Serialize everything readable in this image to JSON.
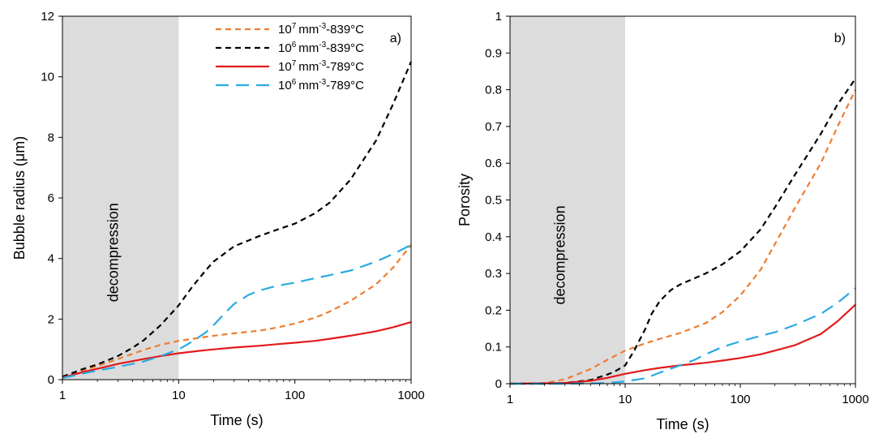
{
  "chart_data": [
    {
      "type": "line",
      "panel_label": "a)",
      "xlabel": "Time (s)",
      "ylabel": "Bubble radius (μm)",
      "x_scale": "log",
      "xlim": [
        1,
        1000
      ],
      "ylim": [
        0,
        12
      ],
      "x_ticks": [
        "1",
        "10",
        "100",
        "1000"
      ],
      "y_ticks": [
        "0",
        "2",
        "4",
        "6",
        "8",
        "10",
        "12"
      ],
      "grid": false,
      "shaded_region": {
        "x_range": [
          1,
          10
        ],
        "label": "decompression",
        "color": "#dcdcdc"
      },
      "legend": {
        "position": "top-right"
      },
      "series": [
        {
          "name_base": "10",
          "name_exp": "7",
          "name_unit": "mm",
          "name_unit_exp": "-3",
          "name_suffix": "-839°C",
          "color": "#ed7d31",
          "dash": "short-dash",
          "x": [
            1,
            1.5,
            2,
            3,
            5,
            7,
            10,
            15,
            20,
            30,
            50,
            70,
            100,
            150,
            200,
            300,
            500,
            700,
            1000
          ],
          "y": [
            0.08,
            0.3,
            0.45,
            0.68,
            0.98,
            1.15,
            1.28,
            1.38,
            1.45,
            1.53,
            1.62,
            1.72,
            1.85,
            2.05,
            2.25,
            2.6,
            3.15,
            3.7,
            4.45
          ]
        },
        {
          "name_base": "10",
          "name_exp": "6",
          "name_unit": "mm",
          "name_unit_exp": "-3",
          "name_suffix": "-839°C",
          "color": "#000000",
          "dash": "short-dash",
          "x": [
            1,
            1.5,
            2,
            3,
            4,
            5,
            7,
            10,
            13,
            17,
            20,
            30,
            50,
            70,
            100,
            150,
            200,
            300,
            500,
            700,
            1000
          ],
          "y": [
            0.1,
            0.35,
            0.5,
            0.78,
            1.05,
            1.3,
            1.8,
            2.45,
            3.05,
            3.6,
            3.9,
            4.4,
            4.75,
            4.95,
            5.15,
            5.5,
            5.85,
            6.6,
            7.9,
            9.1,
            10.5
          ]
        },
        {
          "name_base": "10",
          "name_exp": "7",
          "name_unit": "mm",
          "name_unit_exp": "-3",
          "name_suffix": "-789°C",
          "color": "#e31a1c",
          "dash": "solid",
          "x": [
            1,
            1.5,
            2,
            3,
            5,
            7,
            10,
            15,
            20,
            30,
            50,
            70,
            100,
            150,
            200,
            300,
            500,
            700,
            1000
          ],
          "y": [
            0.07,
            0.25,
            0.36,
            0.52,
            0.68,
            0.78,
            0.87,
            0.95,
            1.0,
            1.06,
            1.12,
            1.17,
            1.22,
            1.28,
            1.35,
            1.45,
            1.6,
            1.73,
            1.9
          ]
        },
        {
          "name_base": "10",
          "name_exp": "6",
          "name_unit": "mm",
          "name_unit_exp": "-3",
          "name_suffix": "-789°C",
          "color": "#29abe2",
          "dash": "long-dash",
          "x": [
            1,
            1.5,
            2,
            3,
            5,
            7,
            10,
            13,
            17,
            20,
            25,
            30,
            40,
            50,
            70,
            100,
            150,
            200,
            300,
            500,
            700,
            1000
          ],
          "y": [
            0.05,
            0.2,
            0.3,
            0.42,
            0.6,
            0.78,
            1.0,
            1.25,
            1.55,
            1.8,
            2.2,
            2.5,
            2.8,
            2.95,
            3.1,
            3.2,
            3.35,
            3.45,
            3.6,
            3.9,
            4.15,
            4.45
          ]
        }
      ]
    },
    {
      "type": "line",
      "panel_label": "b)",
      "xlabel": "Time (s)",
      "ylabel": "Porosity",
      "x_scale": "log",
      "xlim": [
        1,
        1000
      ],
      "ylim": [
        0,
        1
      ],
      "x_ticks": [
        "1",
        "10",
        "100",
        "1000"
      ],
      "y_ticks": [
        "0",
        "0.1",
        "0.2",
        "0.3",
        "0.4",
        "0.5",
        "0.6",
        "0.7",
        "0.8",
        "0.9",
        "1"
      ],
      "grid": false,
      "shaded_region": {
        "x_range": [
          1,
          10
        ],
        "label": "decompression",
        "color": "#dcdcdc"
      },
      "series": [
        {
          "color": "#ed7d31",
          "dash": "short-dash",
          "x": [
            1,
            2,
            3,
            5,
            7,
            10,
            15,
            20,
            30,
            50,
            70,
            100,
            150,
            200,
            300,
            500,
            700,
            1000
          ],
          "y": [
            0,
            0.002,
            0.012,
            0.04,
            0.065,
            0.09,
            0.11,
            0.122,
            0.138,
            0.165,
            0.195,
            0.24,
            0.31,
            0.38,
            0.48,
            0.6,
            0.7,
            0.8
          ]
        },
        {
          "color": "#000000",
          "dash": "short-dash",
          "x": [
            1,
            2,
            3,
            5,
            7,
            8,
            10,
            12,
            15,
            17,
            20,
            25,
            30,
            50,
            70,
            100,
            150,
            200,
            300,
            500,
            700,
            1000
          ],
          "y": [
            0,
            0.0,
            0.002,
            0.01,
            0.025,
            0.032,
            0.05,
            0.09,
            0.15,
            0.19,
            0.225,
            0.255,
            0.27,
            0.3,
            0.325,
            0.36,
            0.42,
            0.48,
            0.57,
            0.68,
            0.76,
            0.83
          ]
        },
        {
          "color": "#e31a1c",
          "dash": "solid",
          "x": [
            1,
            3,
            5,
            7,
            10,
            15,
            20,
            30,
            50,
            70,
            100,
            150,
            200,
            300,
            500,
            700,
            1000
          ],
          "y": [
            0,
            0.002,
            0.008,
            0.016,
            0.027,
            0.037,
            0.043,
            0.05,
            0.057,
            0.063,
            0.07,
            0.08,
            0.09,
            0.105,
            0.135,
            0.17,
            0.215
          ]
        },
        {
          "color": "#29abe2",
          "dash": "long-dash",
          "x": [
            1,
            3,
            5,
            7,
            10,
            15,
            20,
            30,
            40,
            50,
            70,
            100,
            150,
            200,
            300,
            500,
            700,
            1000
          ],
          "y": [
            0,
            0,
            0.001,
            0.002,
            0.006,
            0.015,
            0.03,
            0.05,
            0.065,
            0.08,
            0.1,
            0.115,
            0.13,
            0.14,
            0.16,
            0.19,
            0.22,
            0.26
          ]
        }
      ]
    }
  ]
}
